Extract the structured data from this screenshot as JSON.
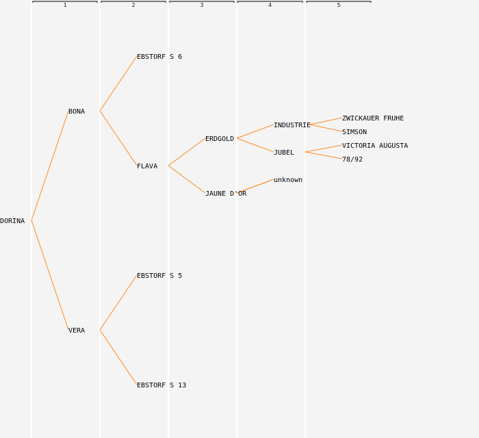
{
  "generations": [
    "1",
    "2",
    "3",
    "4",
    "5"
  ],
  "nodes": {
    "root": "DORINA",
    "p1": "BONA",
    "p2": "VERA",
    "g1": "EBSTORF S 6",
    "g2": "FLAVA",
    "g3": "EBSTORF S 5",
    "g4": "EBSTORF S 13",
    "gg1": "ERDGOLD",
    "gg2": "JAUNE D'OR",
    "ggg1": "INDUSTRIE",
    "ggg2": "JUBEL",
    "ggg3": "unknown",
    "gggg1": "ZWICKAUER FRUHE",
    "gggg2": "SIMSON",
    "gggg3": "VICTORIA AUGUSTA",
    "gggg4": "78/92"
  },
  "edges": [
    [
      "root",
      "p1"
    ],
    [
      "root",
      "p2"
    ],
    [
      "p1",
      "g1"
    ],
    [
      "p1",
      "g2"
    ],
    [
      "p2",
      "g3"
    ],
    [
      "p2",
      "g4"
    ],
    [
      "g2",
      "gg1"
    ],
    [
      "g2",
      "gg2"
    ],
    [
      "gg1",
      "ggg1"
    ],
    [
      "gg1",
      "ggg2"
    ],
    [
      "gg2",
      "ggg3"
    ],
    [
      "ggg1",
      "gggg1"
    ],
    [
      "ggg1",
      "gggg2"
    ],
    [
      "ggg2",
      "gggg3"
    ],
    [
      "ggg2",
      "gggg4"
    ]
  ],
  "colors": {
    "connector": "#ff8a1f",
    "background": "#f4f4f4",
    "column_separator": "#ffffff"
  }
}
